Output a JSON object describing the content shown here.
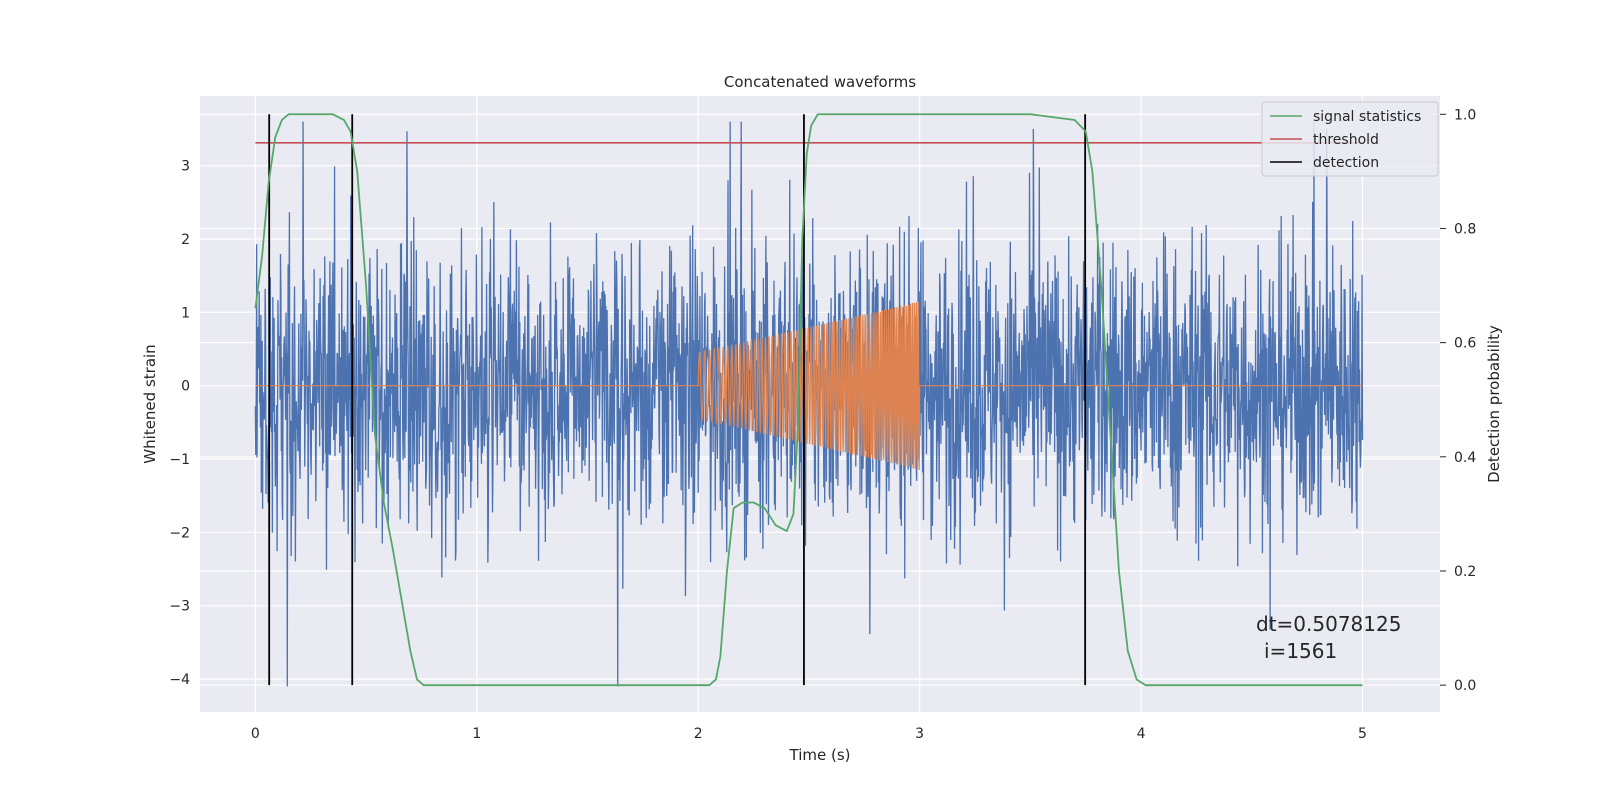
{
  "chart_data": {
    "type": "line",
    "title": "Concatenated waveforms",
    "xlabel": "Time (s)",
    "ylabel": "Whitened strain",
    "ylabel_right": "Detection probability",
    "xlim": [
      -0.25,
      5.35
    ],
    "ylim": [
      -4.45,
      3.95
    ],
    "ylim_right": [
      -0.047,
      1.032
    ],
    "xticks": [
      0,
      1,
      2,
      3,
      4,
      5
    ],
    "yticks": [
      -4,
      -3,
      -2,
      -1,
      0,
      1,
      2,
      3
    ],
    "yticks_right": [
      0.0,
      0.2,
      0.4,
      0.6,
      0.8,
      1.0
    ],
    "grid": true,
    "legend_position": "top-right",
    "colors": {
      "strain": "#4c72b0",
      "template": "#dd8452",
      "signal_statistics": "#55a868",
      "threshold": "#c44e52",
      "detection": "#000000",
      "background": "#eaeaf2",
      "grid": "#ffffff"
    },
    "series": [
      {
        "name": "signal statistics",
        "axis": "right",
        "color": "#55a868",
        "x": [
          0.0,
          0.03,
          0.06,
          0.09,
          0.12,
          0.15,
          0.2,
          0.25,
          0.3,
          0.35,
          0.4,
          0.43,
          0.46,
          0.5,
          0.54,
          0.58,
          0.62,
          0.66,
          0.7,
          0.73,
          0.76,
          0.8,
          1.0,
          1.5,
          2.0,
          2.05,
          2.08,
          2.1,
          2.13,
          2.16,
          2.2,
          2.25,
          2.3,
          2.35,
          2.4,
          2.43,
          2.45,
          2.47,
          2.49,
          2.51,
          2.54,
          2.6,
          3.0,
          3.5,
          3.7,
          3.75,
          3.78,
          3.82,
          3.86,
          3.9,
          3.94,
          3.98,
          4.02,
          4.1,
          4.5,
          5.0
        ],
        "values": [
          0.66,
          0.75,
          0.88,
          0.96,
          0.99,
          1.0,
          1.0,
          1.0,
          1.0,
          1.0,
          0.99,
          0.97,
          0.9,
          0.7,
          0.44,
          0.32,
          0.24,
          0.15,
          0.06,
          0.01,
          0.0,
          0.0,
          0.0,
          0.0,
          0.0,
          0.0,
          0.01,
          0.05,
          0.2,
          0.31,
          0.32,
          0.32,
          0.31,
          0.28,
          0.27,
          0.3,
          0.45,
          0.78,
          0.93,
          0.98,
          1.0,
          1.0,
          1.0,
          1.0,
          0.99,
          0.97,
          0.9,
          0.7,
          0.45,
          0.2,
          0.06,
          0.01,
          0.0,
          0.0,
          0.0,
          0.0
        ]
      },
      {
        "name": "threshold",
        "axis": "right",
        "color": "#c44e52",
        "x": [
          0,
          5
        ],
        "values": [
          0.95,
          0.95
        ]
      },
      {
        "name": "detection",
        "axis": "right",
        "color": "#000000",
        "x": [
          0.0625,
          0.4375,
          2.4775,
          3.7475
        ],
        "ymin": 0.0,
        "ymax": 1.0
      }
    ],
    "template_signal": {
      "start": 2.0,
      "end": 3.0,
      "amp_start": 0.45,
      "amp_end": 1.15
    },
    "strain_noise": {
      "start": 0.0,
      "end": 5.0,
      "min": -4.1,
      "max": 3.6
    },
    "annotation": {
      "line1": "dt=0.5078125",
      "line2": "i=1561"
    }
  }
}
